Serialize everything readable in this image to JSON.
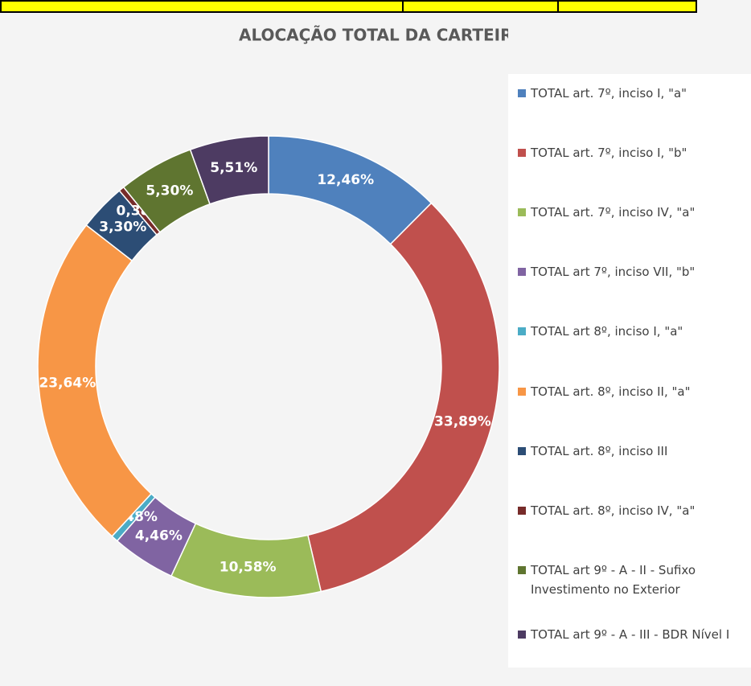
{
  "chart_data": {
    "type": "donut",
    "title": "ALOCAÇÃO TOTAL DA CARTEIRA",
    "categories": [
      "TOTAL art. 7º,  inciso I, \"a\"",
      "TOTAL art. 7º,  inciso I, \"b\"",
      "TOTAL art. 7º, inciso IV, \"a\"",
      "TOTAL art 7º, inciso VII, \"b\"",
      "TOTAL art 8º, inciso I, \"a\"",
      "TOTAL art. 8º, inciso II, \"a\"",
      "TOTAL art. 8º, inciso III",
      "TOTAL art. 8º, inciso IV, \"a\"",
      "TOTAL art 9º - A - II - Sufixo Investimento no Exterior",
      "TOTAL art 9º - A - III - BDR Nível I"
    ],
    "values": [
      12.46,
      33.89,
      10.58,
      4.46,
      0.48,
      23.64,
      3.3,
      0.38,
      5.3,
      5.51
    ],
    "value_labels": [
      "12,46%",
      "33,89%",
      "10,58%",
      "4,46%",
      "0,48%",
      "23,64%",
      "3,30%",
      "0,38%",
      "5,30%",
      "5,51%"
    ],
    "colors": [
      "#4f81bd",
      "#c0504d",
      "#9bbb59",
      "#8064a2",
      "#4bacc6",
      "#f79646",
      "#2c4d75",
      "#772c2a",
      "#5f7530",
      "#4d3b62"
    ],
    "legend": "right"
  }
}
